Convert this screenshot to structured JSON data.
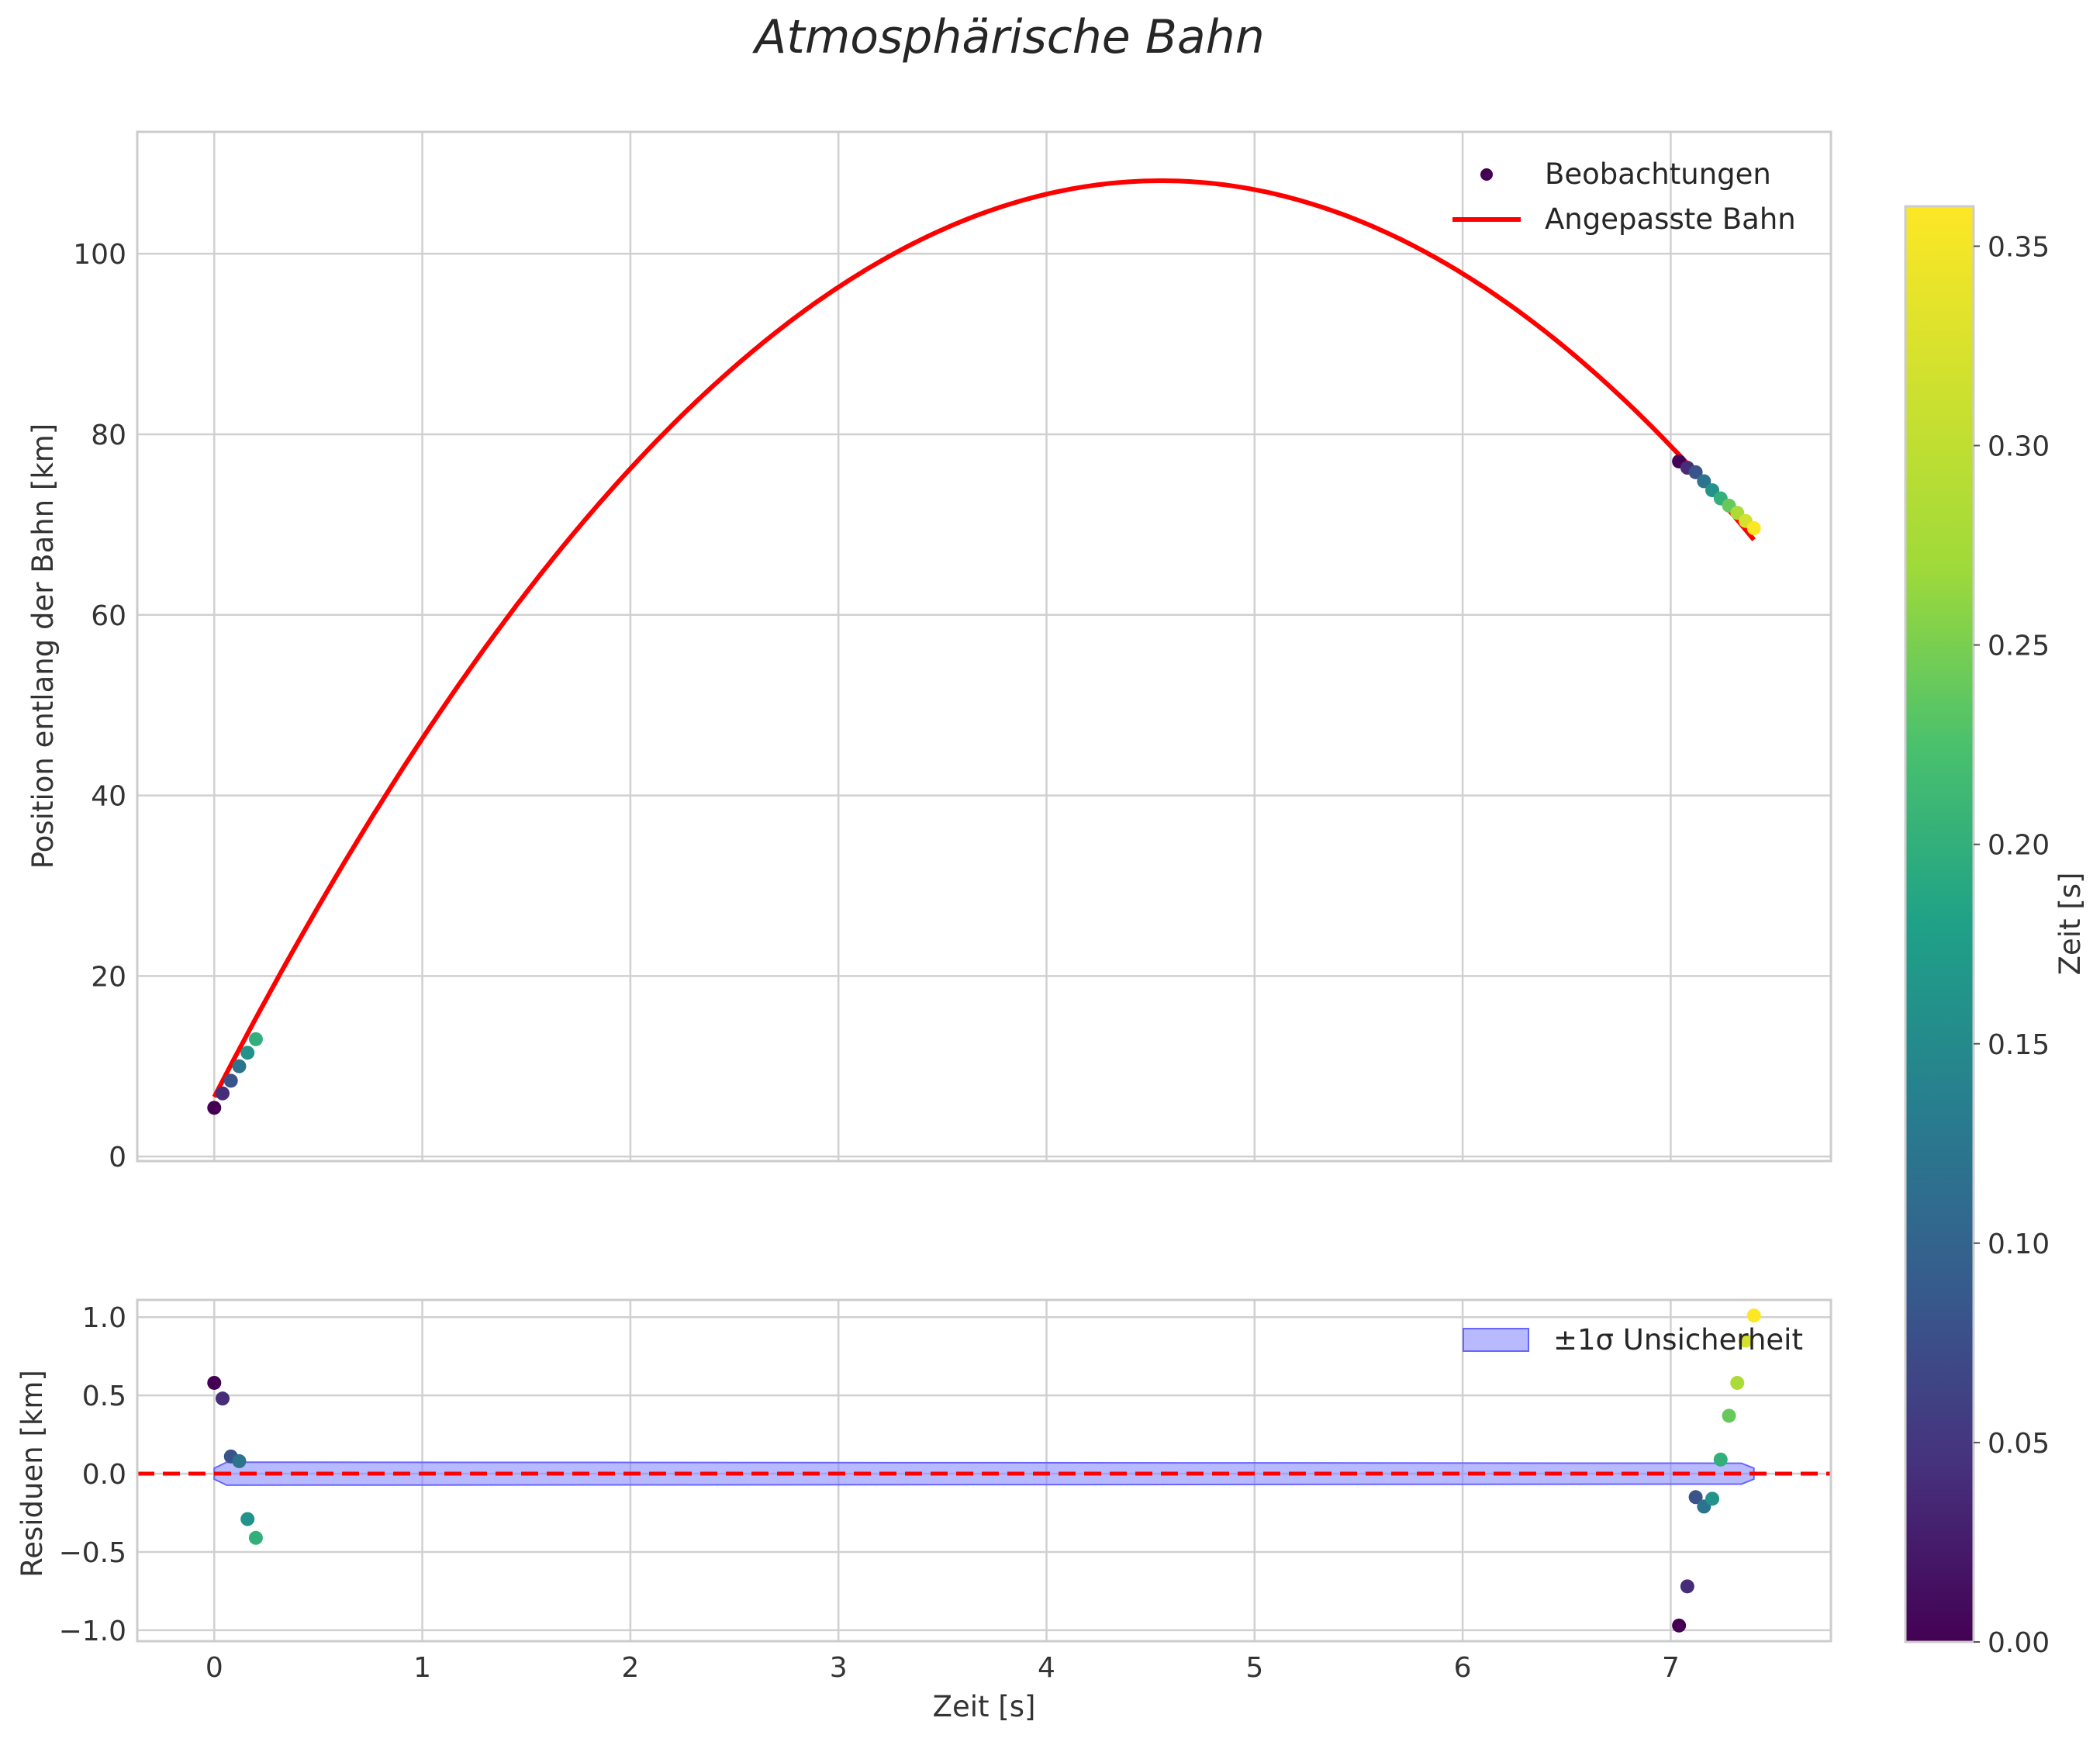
{
  "figure": {
    "title": "Atmosphärische Bahn"
  },
  "colors": {
    "fit_line": "#ff0000",
    "zero_line": "#ff0000",
    "band_fill": "#8080ff",
    "band_edge": "#6666ff",
    "grid": "#d0d0d0",
    "spine": "#cccccc"
  },
  "chart_data": [
    {
      "id": "main",
      "type": "scatter",
      "title": "Atmosphärische Bahn",
      "xlabel": "",
      "ylabel": "Position entlang der Bahn [km]",
      "xlim": [
        -0.37,
        7.77
      ],
      "ylim": [
        -0.5,
        113.5
      ],
      "xticks": [
        0,
        1,
        2,
        3,
        4,
        5,
        6,
        7
      ],
      "yticks": [
        0,
        20,
        40,
        60,
        80,
        100
      ],
      "grid": true,
      "legend": {
        "position": "top-right",
        "entries": [
          "Beobachtungen",
          "Angepasste Bahn"
        ]
      },
      "observations": [
        {
          "t": 0.0,
          "y": 5.4,
          "c": 0.0
        },
        {
          "t": 0.04,
          "y": 7.0,
          "c": 0.04
        },
        {
          "t": 0.08,
          "y": 8.4,
          "c": 0.08
        },
        {
          "t": 0.12,
          "y": 10.0,
          "c": 0.12
        },
        {
          "t": 0.16,
          "y": 11.5,
          "c": 0.16
        },
        {
          "t": 0.2,
          "y": 13.0,
          "c": 0.2
        },
        {
          "t": 7.04,
          "y": 77.0,
          "c": 0.0
        },
        {
          "t": 7.08,
          "y": 76.3,
          "c": 0.04
        },
        {
          "t": 7.12,
          "y": 75.8,
          "c": 0.08
        },
        {
          "t": 7.16,
          "y": 74.8,
          "c": 0.12
        },
        {
          "t": 7.2,
          "y": 73.8,
          "c": 0.16
        },
        {
          "t": 7.24,
          "y": 72.9,
          "c": 0.2
        },
        {
          "t": 7.28,
          "y": 72.1,
          "c": 0.24
        },
        {
          "t": 7.32,
          "y": 71.3,
          "c": 0.28
        },
        {
          "t": 7.36,
          "y": 70.4,
          "c": 0.32
        },
        {
          "t": 7.4,
          "y": 69.6,
          "c": 0.36
        }
      ],
      "fit_model": {
        "a": -4.9,
        "b": 44.6,
        "c": 6.6,
        "t_start": 0.0,
        "t_end": 7.4
      }
    },
    {
      "id": "residuals",
      "type": "scatter",
      "xlabel": "Zeit [s]",
      "ylabel": "Residuen [km]",
      "xlim": [
        -0.37,
        7.77
      ],
      "ylim": [
        -1.07,
        1.11
      ],
      "xticks": [
        0,
        1,
        2,
        3,
        4,
        5,
        6,
        7
      ],
      "xtick_labels": [
        "0",
        "1",
        "2",
        "3",
        "4",
        "5",
        "6",
        "7"
      ],
      "yticks": [
        -1.0,
        -0.5,
        0.0,
        0.5,
        1.0
      ],
      "ytick_labels": [
        "−1.0",
        "−0.5",
        "0.0",
        "0.5",
        "1.0"
      ],
      "grid": true,
      "legend": {
        "position": "top-right",
        "entries": [
          "±1σ Unsicherheit"
        ]
      },
      "zero_line": 0.0,
      "band_sigma": 0.07,
      "points": [
        {
          "t": 0.0,
          "r": 0.58,
          "c": 0.0
        },
        {
          "t": 0.04,
          "r": 0.48,
          "c": 0.04
        },
        {
          "t": 0.08,
          "r": 0.11,
          "c": 0.08
        },
        {
          "t": 0.12,
          "r": 0.08,
          "c": 0.12
        },
        {
          "t": 0.16,
          "r": -0.29,
          "c": 0.16
        },
        {
          "t": 0.2,
          "r": -0.41,
          "c": 0.2
        },
        {
          "t": 7.04,
          "r": -0.97,
          "c": 0.0
        },
        {
          "t": 7.08,
          "r": -0.72,
          "c": 0.04
        },
        {
          "t": 7.12,
          "r": -0.15,
          "c": 0.08
        },
        {
          "t": 7.16,
          "r": -0.21,
          "c": 0.12
        },
        {
          "t": 7.2,
          "r": -0.16,
          "c": 0.16
        },
        {
          "t": 7.24,
          "r": 0.09,
          "c": 0.2
        },
        {
          "t": 7.28,
          "r": 0.37,
          "c": 0.24
        },
        {
          "t": 7.32,
          "r": 0.58,
          "c": 0.28
        },
        {
          "t": 7.36,
          "r": 0.85,
          "c": 0.32
        },
        {
          "t": 7.4,
          "r": 1.01,
          "c": 0.36
        }
      ]
    },
    {
      "id": "colorbar",
      "type": "colorbar",
      "label": "Zeit [s]",
      "range": [
        0.0,
        0.36
      ],
      "ticks": [
        0.0,
        0.05,
        0.1,
        0.15,
        0.2,
        0.25,
        0.3,
        0.35
      ],
      "tick_labels": [
        "0.00",
        "0.05",
        "0.10",
        "0.15",
        "0.20",
        "0.25",
        "0.30",
        "0.35"
      ],
      "colormap": "viridis"
    }
  ]
}
